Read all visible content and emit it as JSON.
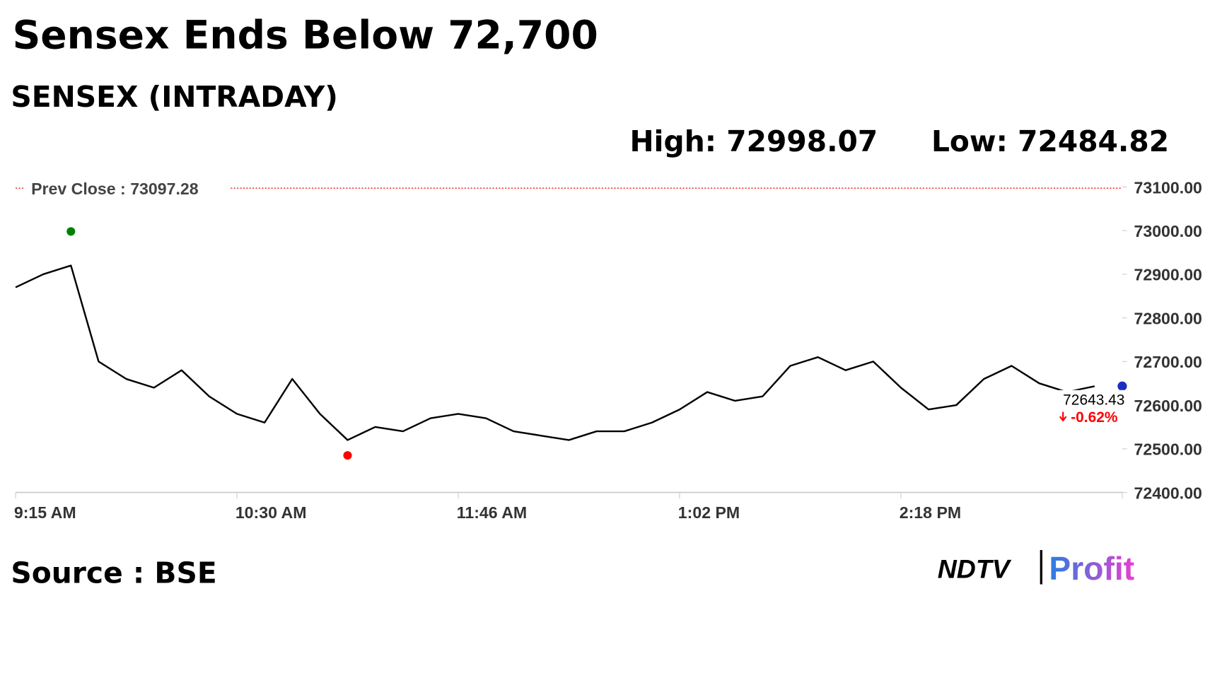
{
  "chart_data": {
    "type": "line",
    "title": "Sensex Ends Below 72,700",
    "subtitle": "SENSEX (INTRADAY)",
    "high_label": "High:",
    "high": 72998.07,
    "low_label": "Low:",
    "low": 72484.82,
    "prev_close_label": "Prev Close :",
    "prev_close": 73097.28,
    "last_value": 72643.43,
    "change_label": "-0.62%",
    "source": "Source : BSE",
    "brand": "NDTV",
    "brand_sub": "Profit",
    "categories": [
      "9:15 AM",
      null,
      null,
      null,
      null,
      null,
      null,
      null,
      "10:30 AM",
      null,
      null,
      null,
      null,
      null,
      null,
      null,
      "11:46 AM",
      null,
      null,
      null,
      null,
      null,
      null,
      null,
      "1:02 PM",
      null,
      null,
      null,
      null,
      null,
      null,
      null,
      "2:18 PM",
      null,
      null,
      null,
      null,
      null,
      null,
      null
    ],
    "series": [
      {
        "color": "#000000",
        "values": [
          72870,
          72900,
          72920,
          72700,
          72660,
          72640,
          72680,
          72620,
          72580,
          72560,
          72660,
          72580,
          72520,
          72550,
          72540,
          72570,
          72580,
          72570,
          72540,
          72530,
          72520,
          72540,
          72540,
          72560,
          72590,
          72630,
          72610,
          72620,
          72690,
          72710,
          72680,
          72700,
          72640,
          72590,
          72600,
          72660,
          72690,
          72650,
          72630,
          72643.43
        ]
      }
    ],
    "ylim": [
      72400,
      73100
    ],
    "yticks": [
      {
        "value": 72400,
        "label": "72400.00"
      },
      {
        "value": 72500,
        "label": "72500.00"
      },
      {
        "value": 72600,
        "label": "72600.00"
      },
      {
        "value": 72700,
        "label": "72700.00"
      },
      {
        "value": 72800,
        "label": "72800.00"
      },
      {
        "value": 72900,
        "label": "72900.00"
      },
      {
        "value": 73000,
        "label": "73000.00"
      },
      {
        "value": 73100,
        "label": "73100.00"
      }
    ],
    "high_color": "#008000",
    "low_color": "#ff0000",
    "prev_close_color": "#e02020"
  }
}
